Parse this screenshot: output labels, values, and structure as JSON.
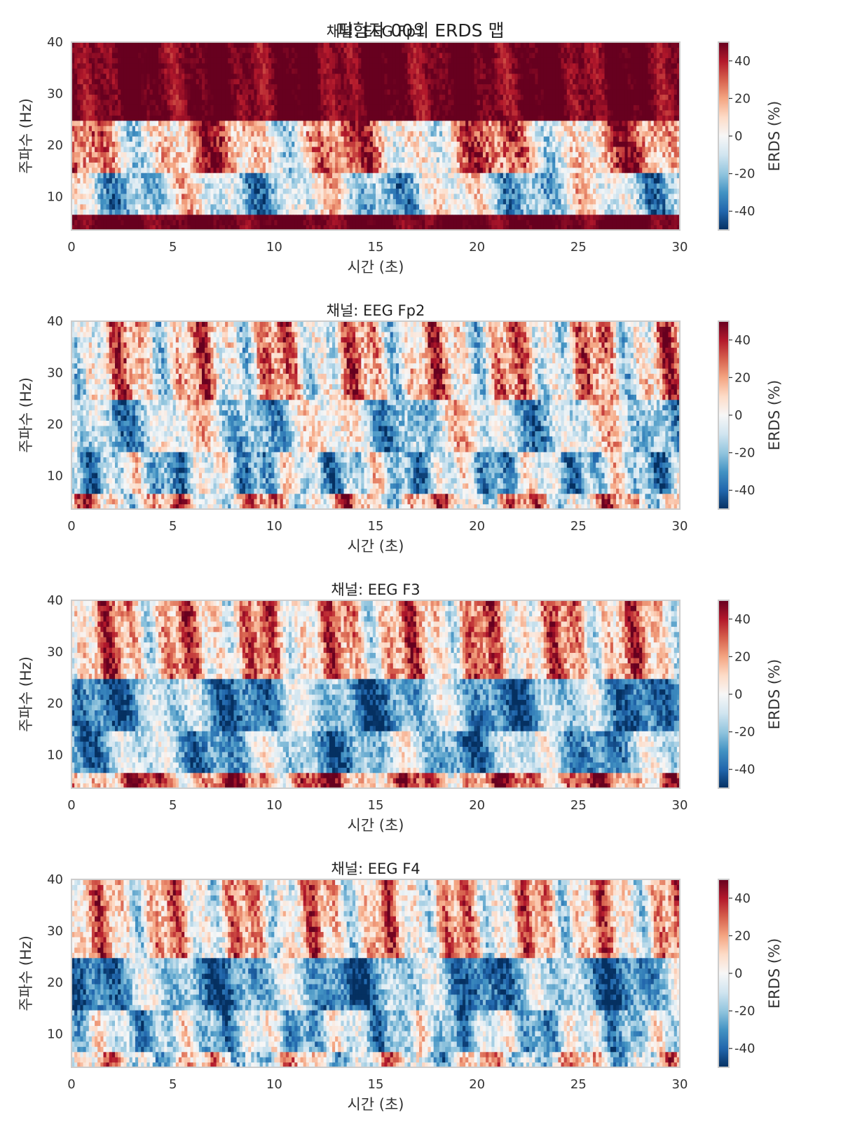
{
  "figure": {
    "suptitle": "피험자 00의 ERDS 맵"
  },
  "chart_data": [
    {
      "type": "heatmap",
      "title": "채널: EEG Fp1",
      "xlabel": "시간 (초)",
      "ylabel": "주파수 (Hz)",
      "xlim": [
        0,
        30
      ],
      "ylim": [
        3.5,
        40
      ],
      "xticks": [
        0,
        5,
        10,
        15,
        20,
        25,
        30
      ],
      "yticks": [
        10,
        20,
        30,
        40
      ],
      "colorbar": {
        "label": "ERDS (%)",
        "ticks": [
          40,
          20,
          0,
          -20,
          -40
        ],
        "range": [
          -50,
          50
        ],
        "colormap": "RdBu_r"
      },
      "bands": [
        {
          "freq_range": [
            3.5,
            7
          ],
          "mean_erds": 50,
          "variability": 10
        },
        {
          "freq_range": [
            7,
            15
          ],
          "mean_erds": -10,
          "variability": 40
        },
        {
          "freq_range": [
            15,
            25
          ],
          "mean_erds": 15,
          "variability": 45
        },
        {
          "freq_range": [
            25,
            40
          ],
          "mean_erds": 50,
          "variability": 15
        }
      ]
    },
    {
      "type": "heatmap",
      "title": "채널: EEG Fp2",
      "xlabel": "시간 (초)",
      "ylabel": "주파수 (Hz)",
      "xlim": [
        0,
        30
      ],
      "ylim": [
        3.5,
        40
      ],
      "xticks": [
        0,
        5,
        10,
        15,
        20,
        25,
        30
      ],
      "yticks": [
        10,
        20,
        30,
        40
      ],
      "colorbar": {
        "label": "ERDS (%)",
        "ticks": [
          40,
          20,
          0,
          -20,
          -40
        ],
        "range": [
          -50,
          50
        ],
        "colormap": "RdBu_r"
      },
      "bands": [
        {
          "freq_range": [
            3.5,
            7
          ],
          "mean_erds": 10,
          "variability": 45
        },
        {
          "freq_range": [
            7,
            15
          ],
          "mean_erds": -15,
          "variability": 40
        },
        {
          "freq_range": [
            15,
            25
          ],
          "mean_erds": -10,
          "variability": 40
        },
        {
          "freq_range": [
            25,
            40
          ],
          "mean_erds": 10,
          "variability": 45
        }
      ]
    },
    {
      "type": "heatmap",
      "title": "채널: EEG F3",
      "xlabel": "시간 (초)",
      "ylabel": "주파수 (Hz)",
      "xlim": [
        0,
        30
      ],
      "ylim": [
        3.5,
        40
      ],
      "xticks": [
        0,
        5,
        10,
        15,
        20,
        25,
        30
      ],
      "yticks": [
        10,
        20,
        30,
        40
      ],
      "colorbar": {
        "label": "ERDS (%)",
        "ticks": [
          40,
          20,
          0,
          -20,
          -40
        ],
        "range": [
          -50,
          50
        ],
        "colormap": "RdBu_r"
      },
      "bands": [
        {
          "freq_range": [
            3.5,
            7
          ],
          "mean_erds": 25,
          "variability": 40
        },
        {
          "freq_range": [
            7,
            15
          ],
          "mean_erds": -20,
          "variability": 35
        },
        {
          "freq_range": [
            15,
            25
          ],
          "mean_erds": -25,
          "variability": 35
        },
        {
          "freq_range": [
            25,
            40
          ],
          "mean_erds": 15,
          "variability": 40
        }
      ]
    },
    {
      "type": "heatmap",
      "title": "채널: EEG F4",
      "xlabel": "시간 (초)",
      "ylabel": "주파수 (Hz)",
      "xlim": [
        0,
        30
      ],
      "ylim": [
        3.5,
        40
      ],
      "xticks": [
        0,
        5,
        10,
        15,
        20,
        25,
        30
      ],
      "yticks": [
        10,
        20,
        30,
        40
      ],
      "colorbar": {
        "label": "ERDS (%)",
        "ticks": [
          40,
          20,
          0,
          -20,
          -40
        ],
        "range": [
          -50,
          50
        ],
        "colormap": "RdBu_r"
      },
      "bands": [
        {
          "freq_range": [
            3.5,
            7
          ],
          "mean_erds": 0,
          "variability": 45
        },
        {
          "freq_range": [
            7,
            15
          ],
          "mean_erds": -15,
          "variability": 35
        },
        {
          "freq_range": [
            15,
            25
          ],
          "mean_erds": -25,
          "variability": 35
        },
        {
          "freq_range": [
            25,
            40
          ],
          "mean_erds": 10,
          "variability": 40
        }
      ]
    }
  ]
}
